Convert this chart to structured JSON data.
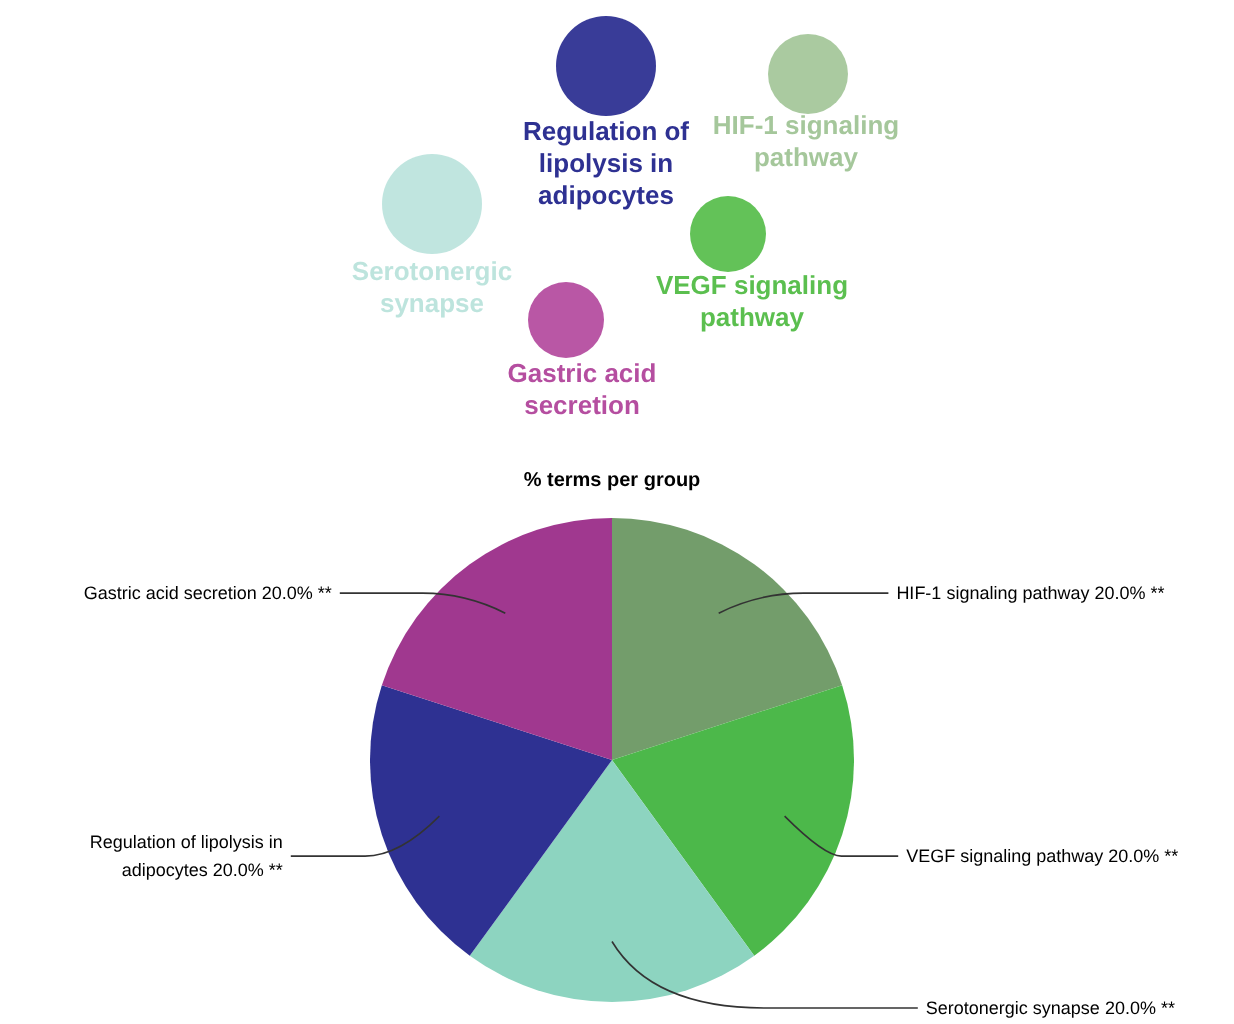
{
  "chart_data": [
    {
      "type": "other",
      "categories": [
        "Regulation of lipolysis in adipocytes",
        "HIF-1 signaling pathway",
        "Serotonergic synapse",
        "VEGF signaling pathway",
        "Gastric acid secretion"
      ],
      "colors": [
        "#2e3192",
        "#a5c79b",
        "#bde4dd",
        "#5bbf4f",
        "#b54ea0"
      ]
    },
    {
      "type": "pie",
      "title": "% terms per group",
      "categories": [
        "HIF-1 signaling pathway",
        "VEGF signaling pathway",
        "Serotonergic synapse",
        "Regulation of lipolysis in adipocytes",
        "Gastric acid secretion"
      ],
      "values": [
        20,
        20,
        20,
        20,
        20
      ],
      "value_labels": [
        "20.0% **",
        "20.0% **",
        "20.0% **",
        "20.0% **",
        "20.0% **"
      ],
      "colors": [
        "#739d6b",
        "#4cb84a",
        "#8dd4c0",
        "#2e3192",
        "#a0388f"
      ]
    }
  ]
}
